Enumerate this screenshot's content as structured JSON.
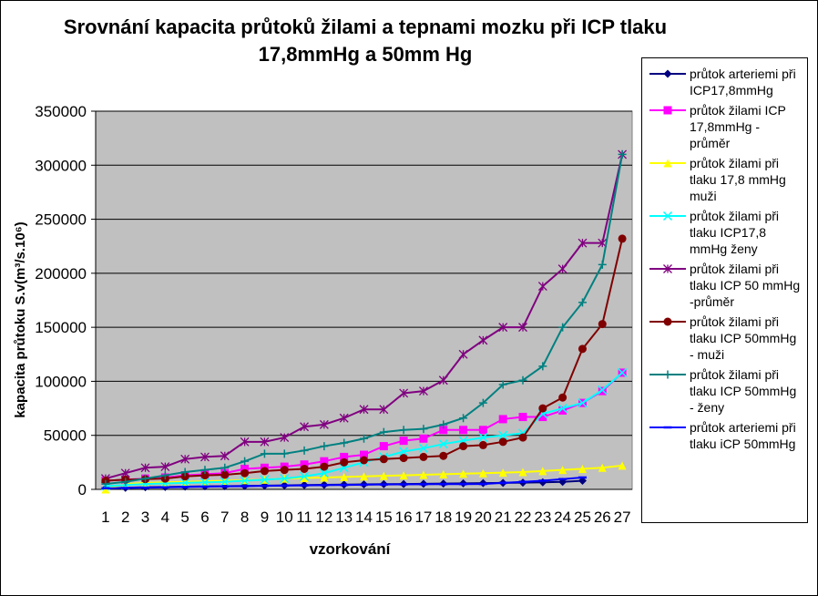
{
  "chart_data": {
    "type": "line",
    "title": "Srovnání kapacita průtoků žilami a tepnami mozku při ICP tlaku 17,8mmHg a 50mm Hg",
    "x_label": "vzorkování",
    "y_label": "kapacita průtoku S.v(m³/s.10⁶)",
    "categories": [
      "1",
      "2",
      "3",
      "4",
      "5",
      "6",
      "7",
      "8",
      "9",
      "10",
      "11",
      "12",
      "13",
      "14",
      "15",
      "16",
      "17",
      "18",
      "19",
      "20",
      "21",
      "22",
      "23",
      "24",
      "25",
      "26",
      "27"
    ],
    "ylim": [
      0,
      350000
    ],
    "yticks": [
      0,
      50000,
      100000,
      150000,
      200000,
      250000,
      300000,
      350000
    ],
    "grid": true,
    "series": [
      {
        "name": "průtok arteriemi při ICP17,8mmHg",
        "color": "#000080",
        "marker": "diamond",
        "values": [
          1000,
          1500,
          2000,
          2200,
          2500,
          2800,
          3000,
          3200,
          3500,
          3700,
          4000,
          4200,
          4400,
          4600,
          4800,
          5000,
          5200,
          5400,
          5600,
          5800,
          6000,
          6200,
          6500,
          7000,
          8000,
          null,
          null
        ]
      },
      {
        "name": "průtok žilami ICP 17,8mmHg - průměr",
        "color": "#ff00ff",
        "marker": "square",
        "values": [
          8000,
          9000,
          10000,
          11000,
          13000,
          14000,
          15000,
          19000,
          20000,
          21000,
          23000,
          26000,
          30000,
          32000,
          40000,
          45000,
          47000,
          55000,
          55000,
          55000,
          65000,
          67000,
          67000,
          73000,
          80000,
          91000,
          108000
        ]
      },
      {
        "name": "průtok žilami při tlaku 17,8 mmHg  muži",
        "color": "#ffff00",
        "marker": "triangle",
        "values": [
          0,
          5000,
          6000,
          6500,
          7000,
          7500,
          8000,
          8500,
          9000,
          10000,
          10500,
          11000,
          11500,
          12000,
          12500,
          13000,
          13500,
          14000,
          14500,
          15000,
          15500,
          16000,
          17000,
          18000,
          19000,
          20000,
          22000
        ]
      },
      {
        "name": "průtok žilami při tlaku ICP17,8 mmHg ženy",
        "color": "#00ffff",
        "marker": "x",
        "values": [
          3000,
          4000,
          5000,
          5500,
          6000,
          6500,
          7000,
          8000,
          9000,
          10000,
          12000,
          15000,
          20000,
          25000,
          30000,
          35000,
          38000,
          42000,
          45000,
          48000,
          50000,
          52000,
          70000,
          75000,
          80000,
          92000,
          108000
        ]
      },
      {
        "name": "průtok žilami při tlaku  ICP 50 mmHg -průměr",
        "color": "#800080",
        "marker": "star",
        "values": [
          10000,
          15000,
          20000,
          21000,
          28000,
          30000,
          31000,
          44000,
          44000,
          48000,
          58000,
          60000,
          66000,
          74000,
          74000,
          89000,
          91000,
          101000,
          125000,
          138000,
          150000,
          150000,
          188000,
          204000,
          228000,
          228000,
          310000
        ]
      },
      {
        "name": "průtok žilami při tlaku ICP 50mmHg - muži",
        "color": "#800000",
        "marker": "circle",
        "values": [
          8000,
          9000,
          9500,
          10000,
          12000,
          13000,
          13500,
          15000,
          17000,
          18000,
          19000,
          21000,
          25000,
          27000,
          28000,
          29000,
          30000,
          31000,
          40000,
          41000,
          44000,
          48000,
          75000,
          85000,
          130000,
          153000,
          232000
        ]
      },
      {
        "name": "průtok žilami při tlaku ICP 50mmHg - ženy",
        "color": "#008080",
        "marker": "plus",
        "values": [
          5000,
          7000,
          10000,
          13000,
          16000,
          18000,
          20000,
          26000,
          33000,
          33000,
          36000,
          40000,
          43000,
          47000,
          53000,
          55000,
          56000,
          60000,
          66000,
          80000,
          97000,
          101000,
          114000,
          150000,
          173000,
          208000,
          310000
        ]
      },
      {
        "name": "průtok arteriemi při tlaku iCP 50mmHg",
        "color": "#0000ff",
        "marker": "dash",
        "values": [
          1000,
          1300,
          1600,
          1900,
          2200,
          2500,
          2800,
          3000,
          3300,
          3500,
          3700,
          3900,
          4100,
          4300,
          4500,
          4600,
          4700,
          4800,
          4900,
          5000,
          6000,
          7000,
          8000,
          9500,
          11000,
          null,
          null
        ]
      }
    ]
  }
}
